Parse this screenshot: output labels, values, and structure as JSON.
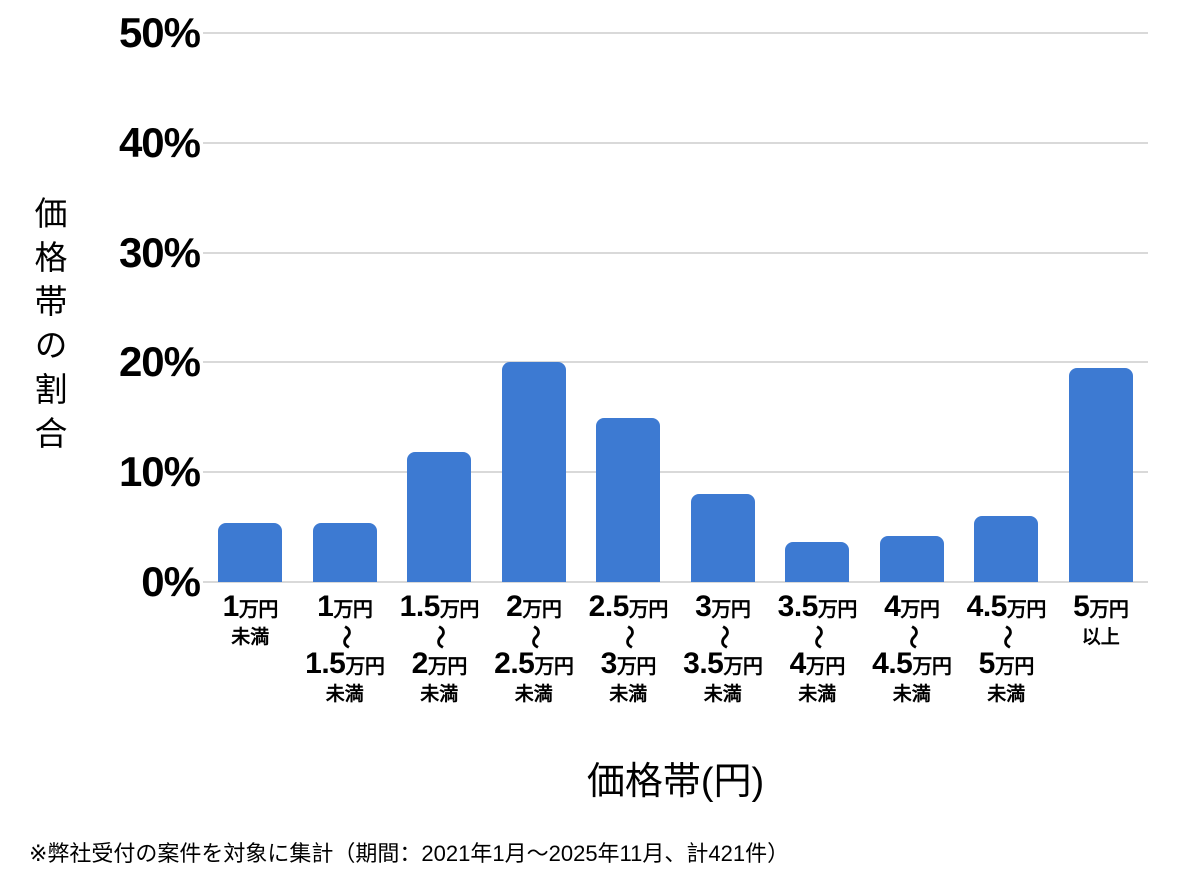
{
  "chart_data": {
    "type": "bar",
    "title": "",
    "xlabel": "価格帯(円)",
    "ylabel": "価格帯の割合",
    "ylim": [
      0,
      50
    ],
    "grid": true,
    "legend": "none",
    "bar_color": "#3d7ad2",
    "gridline_color": "#d9d9d9",
    "yticks": [
      {
        "value": 0,
        "label": "0%"
      },
      {
        "value": 10,
        "label": "10%"
      },
      {
        "value": 20,
        "label": "20%"
      },
      {
        "value": 30,
        "label": "30%"
      },
      {
        "value": 40,
        "label": "40%"
      },
      {
        "value": 50,
        "label": "50%"
      }
    ],
    "categories": [
      {
        "label": "1万円未満",
        "num1": "1",
        "unit1": "万円",
        "tilde": "",
        "num2": "",
        "unit2": "",
        "note": "未満"
      },
      {
        "label": "1万円〜1.5万円未満",
        "num1": "1",
        "unit1": "万円",
        "tilde": "〜",
        "num2": "1.5",
        "unit2": "万円",
        "note": "未満"
      },
      {
        "label": "1.5万円〜2万円未満",
        "num1": "1.5",
        "unit1": "万円",
        "tilde": "〜",
        "num2": "2",
        "unit2": "万円",
        "note": "未満"
      },
      {
        "label": "2万円〜2.5万円未満",
        "num1": "2",
        "unit1": "万円",
        "tilde": "〜",
        "num2": "2.5",
        "unit2": "万円",
        "note": "未満"
      },
      {
        "label": "2.5万円〜3万円未満",
        "num1": "2.5",
        "unit1": "万円",
        "tilde": "〜",
        "num2": "3",
        "unit2": "万円",
        "note": "未満"
      },
      {
        "label": "3万円〜3.5万円未満",
        "num1": "3",
        "unit1": "万円",
        "tilde": "〜",
        "num2": "3.5",
        "unit2": "万円",
        "note": "未満"
      },
      {
        "label": "3.5万円〜4万円未満",
        "num1": "3.5",
        "unit1": "万円",
        "tilde": "〜",
        "num2": "4",
        "unit2": "万円",
        "note": "未満"
      },
      {
        "label": "4万円〜4.5万円未満",
        "num1": "4",
        "unit1": "万円",
        "tilde": "〜",
        "num2": "4.5",
        "unit2": "万円",
        "note": "未満"
      },
      {
        "label": "4.5万円〜5万円未満",
        "num1": "4.5",
        "unit1": "万円",
        "tilde": "〜",
        "num2": "5",
        "unit2": "万円",
        "note": "未満"
      },
      {
        "label": "5万円以上",
        "num1": "5",
        "unit1": "万円",
        "tilde": "",
        "num2": "",
        "unit2": "",
        "note": "以上"
      }
    ],
    "values": [
      5.4,
      5.4,
      11.8,
      20.0,
      14.9,
      8.0,
      3.6,
      4.2,
      6.0,
      19.5
    ]
  },
  "footer": {
    "note": "※弊社受付の案件を対象に集計（期間：2021年1月〜2025年11月、計421件）"
  }
}
